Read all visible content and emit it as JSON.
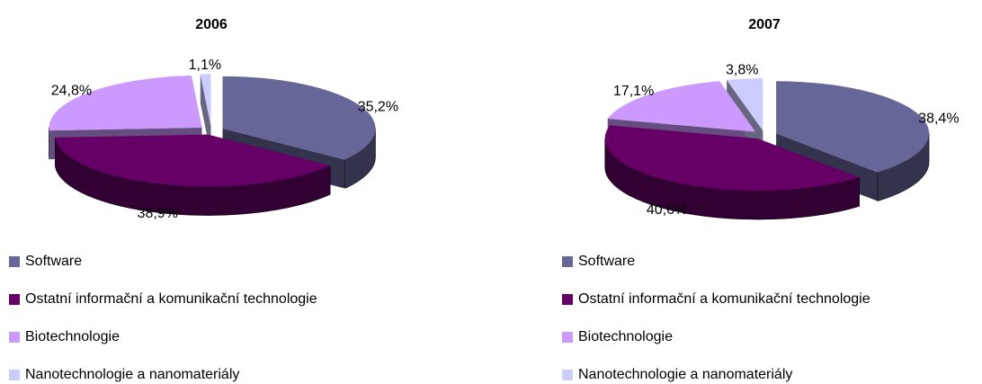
{
  "chart_data": [
    {
      "type": "pie",
      "title": "2006",
      "categories": [
        "Software",
        "Ostatní informační a komunikační technologie",
        "Biotechnologie",
        "Nanotechnologie a nanomateriály"
      ],
      "values": [
        35.2,
        38.9,
        24.8,
        1.1
      ],
      "value_labels": [
        "35,2%",
        "38,9%",
        "24,8%",
        "1,1%"
      ],
      "colors": [
        "#666699",
        "#660066",
        "#cc99ff",
        "#ccccff"
      ]
    },
    {
      "type": "pie",
      "title": "2007",
      "categories": [
        "Software",
        "Ostatní informační a komunikační technologie",
        "Biotechnologie",
        "Nanotechnologie a nanomateriály"
      ],
      "values": [
        38.4,
        40.6,
        17.1,
        3.8
      ],
      "value_labels": [
        "38,4%",
        "40,6%",
        "17,1%",
        "3,8%"
      ],
      "colors": [
        "#666699",
        "#660066",
        "#cc99ff",
        "#ccccff"
      ]
    }
  ]
}
